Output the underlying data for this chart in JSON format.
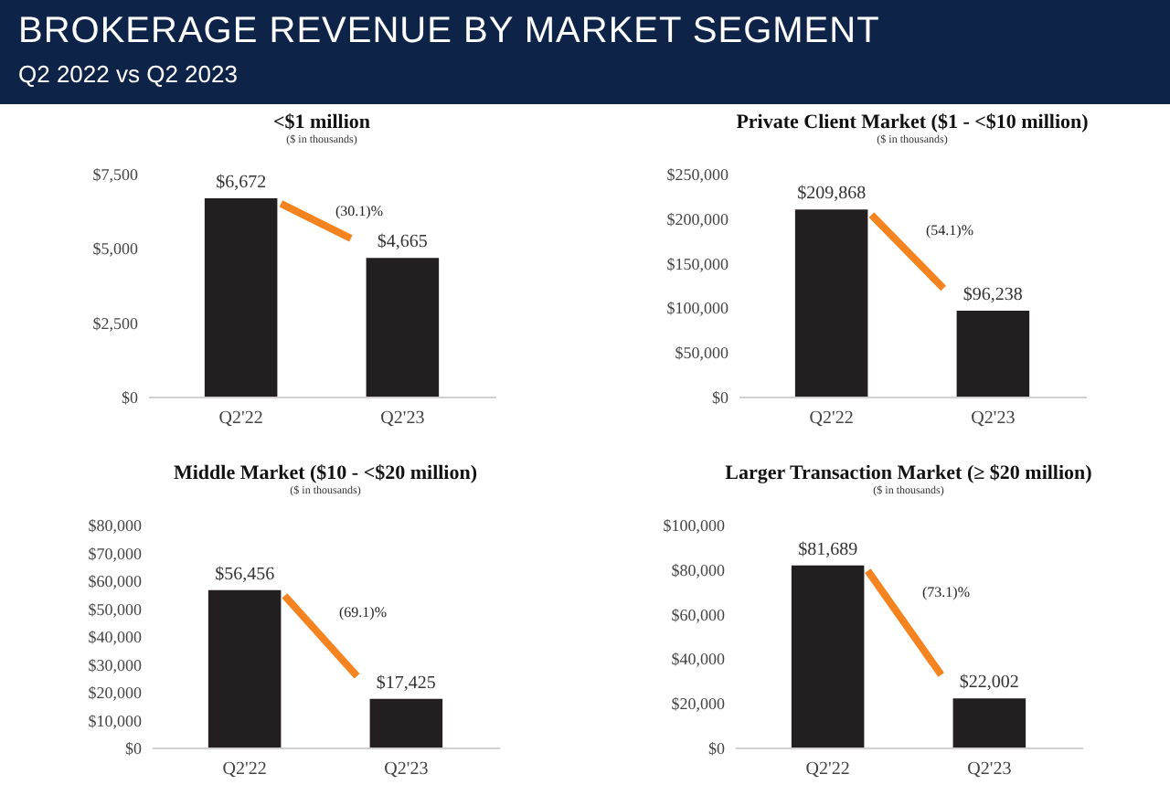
{
  "chart_data": [
    {
      "type": "other",
      "title": "BROKERAGE REVENUE BY MARKET SEGMENT",
      "subtitle": "Q2 2022 vs Q2 2023"
    },
    {
      "type": "bar",
      "title": "<$1 million",
      "subtitle": "($ in thousands)",
      "categories": [
        "Q2'22",
        "Q2'23"
      ],
      "values": [
        6672,
        4665
      ],
      "color": "#231f20",
      "value_labels": [
        "$6,672",
        "$4,665"
      ],
      "ylim": [
        0,
        7500
      ],
      "yticks": [
        {
          "value": 0,
          "label": "$0"
        },
        {
          "value": 2500,
          "label": "$2,500"
        },
        {
          "value": 5000,
          "label": "$5,000"
        },
        {
          "value": 7500,
          "label": "$7,500"
        }
      ],
      "annotations": [
        "(30.1)%"
      ]
    },
    {
      "type": "bar",
      "title": "Private Client Market ($1 - <$10 million)",
      "subtitle": "($ in thousands)",
      "categories": [
        "Q2'22",
        "Q2'23"
      ],
      "values": [
        209868,
        96238
      ],
      "color": "#231f20",
      "value_labels": [
        "$209,868",
        "$96,238"
      ],
      "ylim": [
        0,
        250000
      ],
      "yticks": [
        {
          "value": 0,
          "label": "$0"
        },
        {
          "value": 50000,
          "label": "$50,000"
        },
        {
          "value": 100000,
          "label": "$100,000"
        },
        {
          "value": 150000,
          "label": "$150,000"
        },
        {
          "value": 200000,
          "label": "$200,000"
        },
        {
          "value": 250000,
          "label": "$250,000"
        }
      ],
      "annotations": [
        "(54.1)%"
      ]
    },
    {
      "type": "bar",
      "title": "Middle Market ($10 - <$20 million)",
      "subtitle": "($ in thousands)",
      "categories": [
        "Q2'22",
        "Q2'23"
      ],
      "values": [
        56456,
        17425
      ],
      "color": "#231f20",
      "value_labels": [
        "$56,456",
        "$17,425"
      ],
      "ylim": [
        0,
        80000
      ],
      "yticks": [
        {
          "value": 0,
          "label": "$0"
        },
        {
          "value": 10000,
          "label": "$10,000"
        },
        {
          "value": 20000,
          "label": "$20,000"
        },
        {
          "value": 30000,
          "label": "$30,000"
        },
        {
          "value": 40000,
          "label": "$40,000"
        },
        {
          "value": 50000,
          "label": "$50,000"
        },
        {
          "value": 60000,
          "label": "$60,000"
        },
        {
          "value": 70000,
          "label": "$70,000"
        },
        {
          "value": 80000,
          "label": "$80,000"
        }
      ],
      "annotations": [
        "(69.1)%"
      ]
    },
    {
      "type": "bar",
      "title": "Larger Transaction Market (≥ $20 million)",
      "subtitle": "($ in thousands)",
      "categories": [
        "Q2'22",
        "Q2'23"
      ],
      "values": [
        81689,
        22002
      ],
      "color": "#231f20",
      "value_labels": [
        "$81,689",
        "$22,002"
      ],
      "ylim": [
        0,
        100000
      ],
      "yticks": [
        {
          "value": 0,
          "label": "$0"
        },
        {
          "value": 20000,
          "label": "$20,000"
        },
        {
          "value": 40000,
          "label": "$40,000"
        },
        {
          "value": 60000,
          "label": "$60,000"
        },
        {
          "value": 80000,
          "label": "$80,000"
        },
        {
          "value": 100000,
          "label": "$100,000"
        }
      ],
      "annotations": [
        "(73.1)%"
      ]
    }
  ]
}
